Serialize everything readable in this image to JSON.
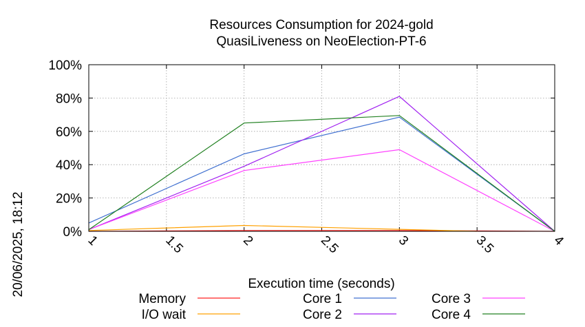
{
  "chart_data": {
    "type": "line",
    "title": [
      "Resources Consumption for 2024-gold",
      "QuasiLiveness on NeoElection-PT-6"
    ],
    "xlabel": "Execution time (seconds)",
    "ylabel": "",
    "side_label": "20/06/2025, 18:12",
    "xlim": [
      1,
      4
    ],
    "ylim": [
      0,
      100
    ],
    "x_ticks": [
      "1",
      "1.5",
      "2",
      "2.5",
      "3",
      "3.5",
      "4"
    ],
    "y_ticks": [
      "0%",
      "20%",
      "40%",
      "60%",
      "80%",
      "100%"
    ],
    "grid": true,
    "legend_position": "bottom",
    "series": [
      {
        "name": "Memory",
        "color": "#ff2020",
        "x": [
          1,
          2,
          3,
          4
        ],
        "y": [
          0,
          0.5,
          0.5,
          0
        ]
      },
      {
        "name": "I/O wait",
        "color": "#ffa000",
        "x": [
          1,
          2,
          3,
          3.5
        ],
        "y": [
          0.5,
          3.5,
          1.2,
          0
        ]
      },
      {
        "name": "Core 1",
        "color": "#4070d0",
        "x": [
          1,
          2,
          3,
          4
        ],
        "y": [
          5,
          46.5,
          68.5,
          0
        ]
      },
      {
        "name": "Core 2",
        "color": "#a020f0",
        "x": [
          1,
          2,
          3,
          4
        ],
        "y": [
          1,
          39,
          81,
          0
        ]
      },
      {
        "name": "Core 3",
        "color": "#ff40ff",
        "x": [
          1,
          2,
          3,
          4
        ],
        "y": [
          1,
          36.5,
          49,
          0
        ]
      },
      {
        "name": "Core 4",
        "color": "#208020",
        "x": [
          1,
          2,
          3,
          4
        ],
        "y": [
          1,
          65,
          69.5,
          0
        ]
      }
    ]
  }
}
